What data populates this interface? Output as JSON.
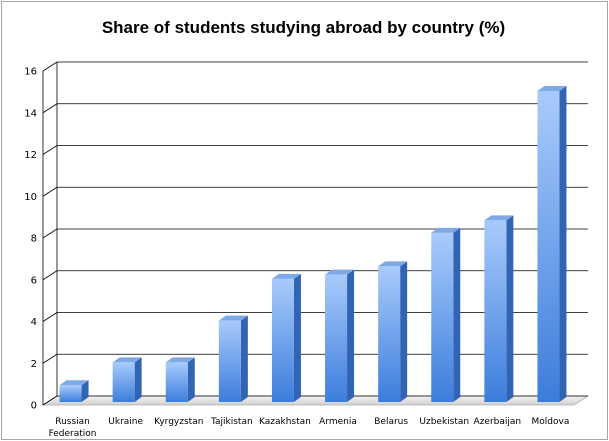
{
  "chart_data": {
    "type": "bar",
    "title": "Share of students studying abroad by country (%)",
    "categories": [
      "Russian Federation",
      "Ukraine",
      "Kyrgyzstan",
      "Tajikistan",
      "Kazakhstan",
      "Armenia",
      "Belarus",
      "Uzbekistan",
      "Azerbaijan",
      "Moldova"
    ],
    "category_lines": [
      [
        "Russian",
        "Federation"
      ],
      [
        "Ukraine"
      ],
      [
        "Kyrgyzstan"
      ],
      [
        "Tajikistan"
      ],
      [
        "Kazakhstan"
      ],
      [
        "Armenia"
      ],
      [
        "Belarus"
      ],
      [
        "Uzbekistan"
      ],
      [
        "Azerbaijan"
      ],
      [
        "Moldova"
      ]
    ],
    "values": [
      0.8,
      1.9,
      1.9,
      3.9,
      5.9,
      6.1,
      6.5,
      8.1,
      8.7,
      14.9
    ],
    "yticks": [
      0,
      2,
      4,
      6,
      8,
      10,
      12,
      14,
      16
    ],
    "ylim": [
      0,
      16
    ],
    "xlabel": "",
    "ylabel": "",
    "grid": true,
    "legend": "none",
    "style": "3d-column",
    "colors": {
      "bar_light": "#a9cbfb",
      "bar_dark": "#3c7ddc",
      "bar_side": "#3164b4",
      "bar_top": "#7fa8e6",
      "grid": "#000000",
      "floor": "#dcdcdc"
    }
  }
}
